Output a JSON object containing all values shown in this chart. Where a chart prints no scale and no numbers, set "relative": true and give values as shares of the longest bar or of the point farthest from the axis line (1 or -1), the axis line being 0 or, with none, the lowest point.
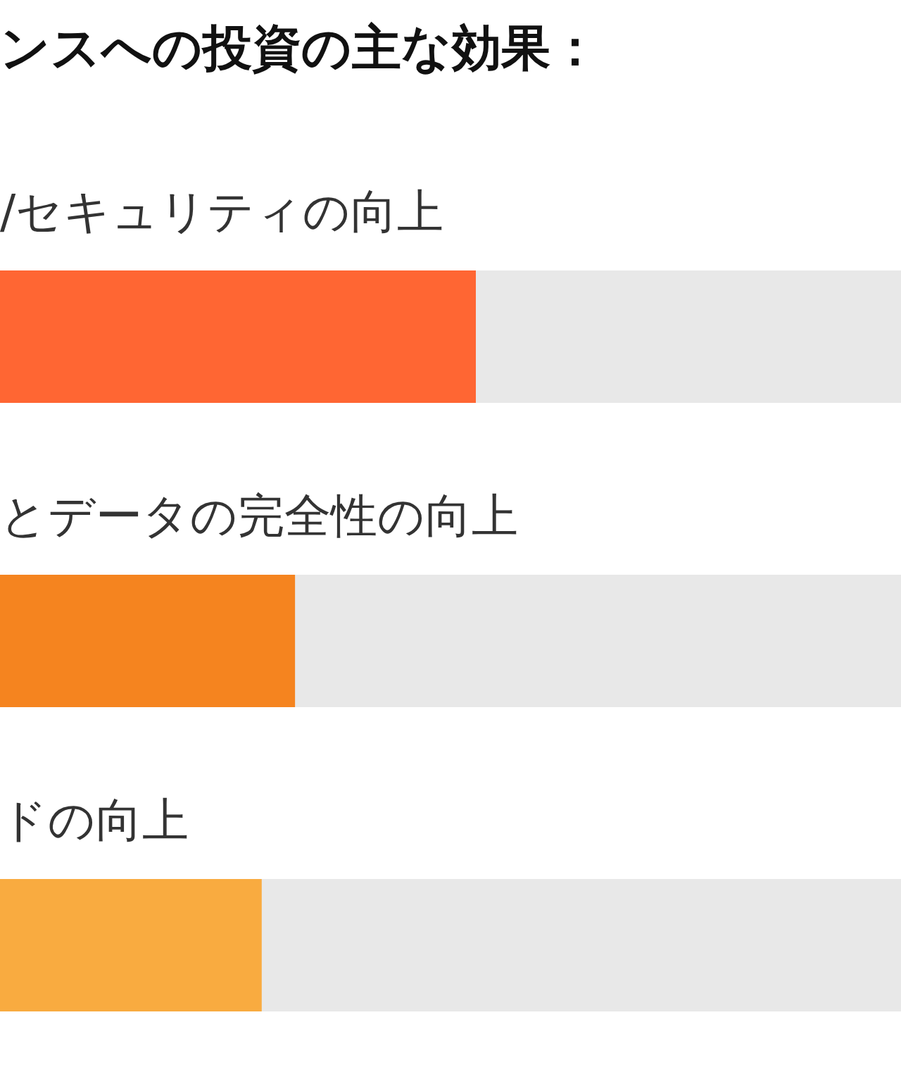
{
  "chart_data": {
    "type": "bar",
    "orientation": "horizontal",
    "title": "ンスへの投資の主な効果：",
    "categories": [
      "/セキュリティの向上",
      "とデータの完全性の向上",
      "ドの向上"
    ],
    "values": [
      1,
      0.62,
      0.55
    ],
    "colors": [
      "#ff6633",
      "#f5841f",
      "#f9ab40"
    ],
    "relative": true
  }
}
